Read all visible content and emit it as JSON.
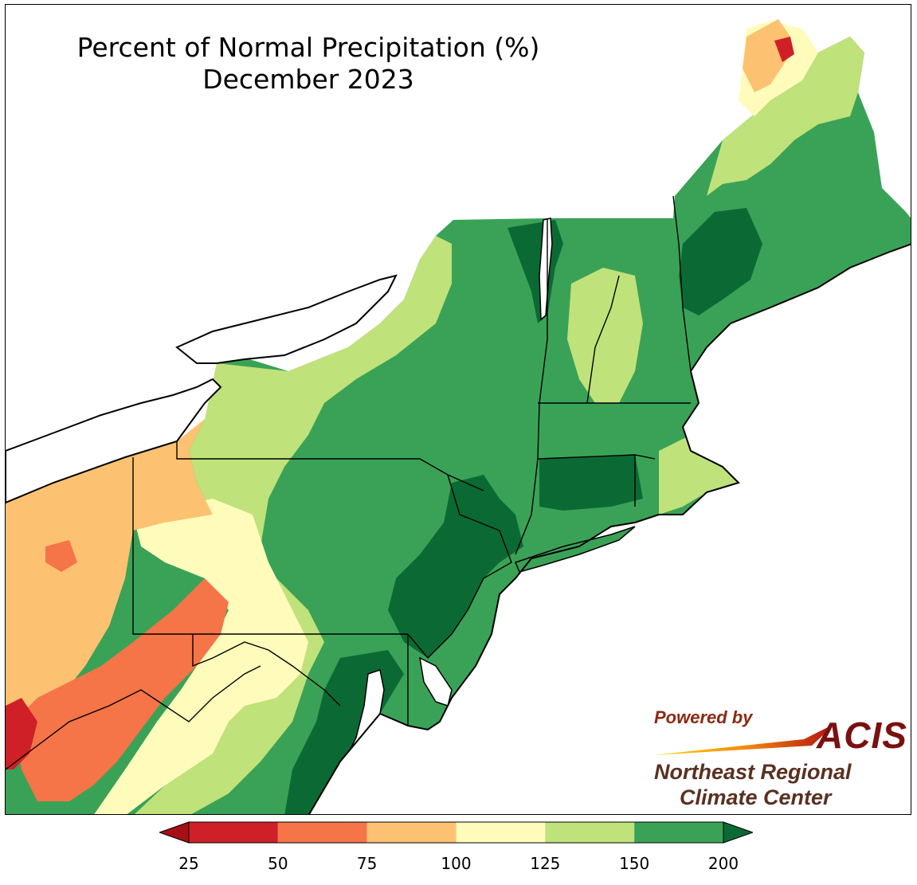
{
  "title": {
    "line1": "Percent of Normal Precipitation (%)",
    "line2": "December 2023"
  },
  "logo": {
    "powered_by": "Powered by",
    "acis": "ACIS",
    "org_line1": "Northeast Regional",
    "org_line2": "Climate Center"
  },
  "legend": {
    "ticks": [
      "25",
      "50",
      "75",
      "100",
      "125",
      "150",
      "200"
    ],
    "bins": [
      {
        "range": "<25",
        "color": "#a50f15"
      },
      {
        "range": "25-50",
        "color": "#cf2027"
      },
      {
        "range": "50-75",
        "color": "#f57448"
      },
      {
        "range": "75-100",
        "color": "#fdc271"
      },
      {
        "range": "100-125",
        "color": "#fffcbb"
      },
      {
        "range": "125-150",
        "color": "#bfe27a"
      },
      {
        "range": "150-200",
        "color": "#3aa257"
      },
      {
        "range": ">200",
        "color": "#0b6a34"
      }
    ]
  },
  "colors": {
    "outline": "#000000",
    "county_lines": "#7a7a5a",
    "water": "#ffffff"
  }
}
